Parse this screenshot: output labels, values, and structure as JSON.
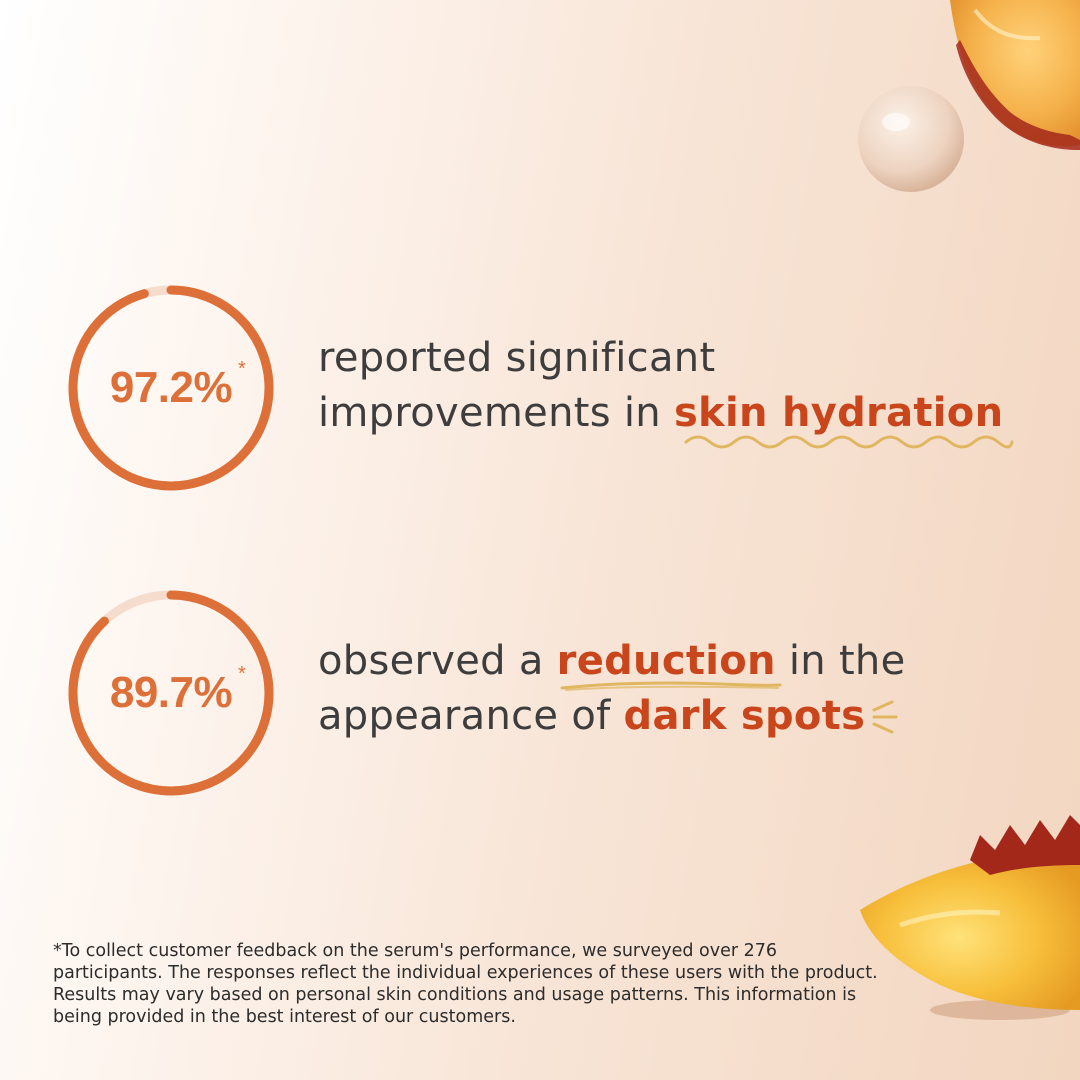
{
  "colors": {
    "accent": "#dc7038",
    "highlight": "#c9461c",
    "ring_track": "#f6dccd",
    "squiggle": "#e0b661",
    "text": "#3d3d3d"
  },
  "stats": [
    {
      "value": "97.2%",
      "asterisk": "*",
      "progress": 0.972,
      "line1": "reported significant",
      "line2_prefix": "improvements in ",
      "line2_highlight": "skin hydration"
    },
    {
      "value": "89.7%",
      "asterisk": "*",
      "progress": 0.897,
      "line1_prefix": "observed a ",
      "line1_highlight": "reduction",
      "line1_suffix": " in the",
      "line2_prefix": "appearance of ",
      "line2_highlight": "dark spots"
    }
  ],
  "footnote": "*To collect customer feedback on the serum's performance, we surveyed over 276 participants. The responses reflect the individual experiences of these users with the product. Results may vary based on personal skin conditions and usage patterns. This information is being provided in the best interest of our customers.",
  "decorations": [
    "peach-slice-top-image",
    "serum-droplet-image",
    "peach-slice-bottom-image"
  ]
}
